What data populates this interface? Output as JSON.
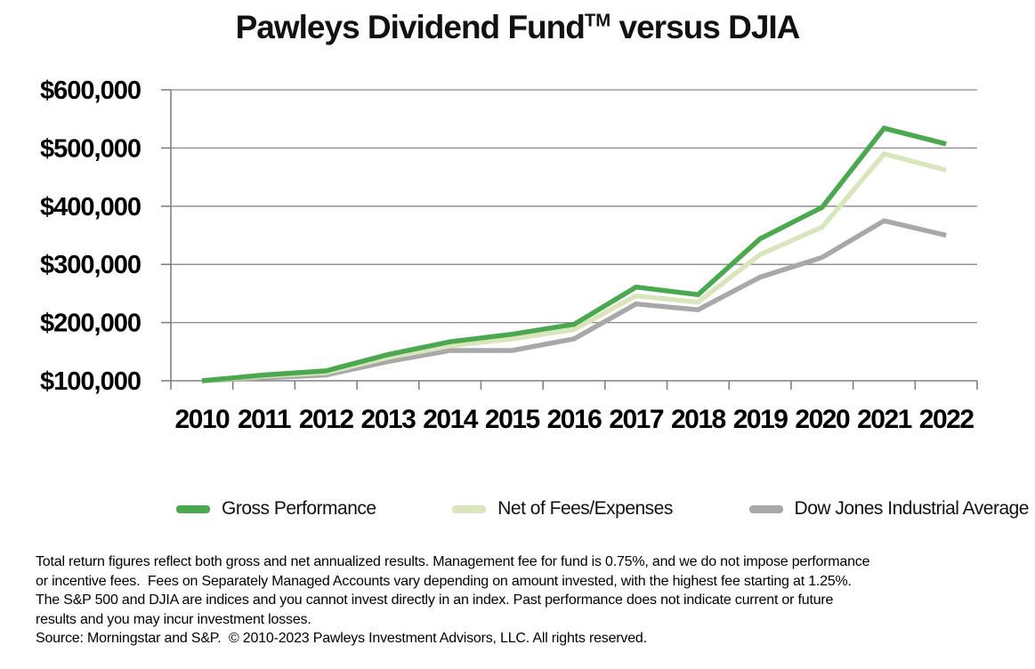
{
  "title": {
    "main": "Pawleys Dividend Fund",
    "trademark": "TM",
    "suffix": " versus DJIA"
  },
  "chart_data": {
    "type": "line",
    "title": "Pawleys Dividend Fund™ versus DJIA",
    "categories": [
      "2010",
      "2011",
      "2012",
      "2013",
      "2014",
      "2015",
      "2016",
      "2017",
      "2018",
      "2019",
      "2020",
      "2021",
      "2022"
    ],
    "series": [
      {
        "name": "Gross Performance",
        "color": "#4aa84e",
        "values": [
          100000,
          110000,
          117000,
          145000,
          167000,
          180000,
          197000,
          261000,
          248000,
          344000,
          398000,
          534000,
          507000
        ]
      },
      {
        "name": "Net of Fees/Expenses",
        "color": "#d9e6bc",
        "values": [
          100000,
          108000,
          114000,
          140000,
          160000,
          172000,
          188000,
          246000,
          235000,
          317000,
          364000,
          490000,
          462000
        ]
      },
      {
        "name": "Dow Jones Industrial Average",
        "color": "#a8a8a8",
        "values": [
          100000,
          105000,
          110000,
          133000,
          152000,
          152000,
          172000,
          232000,
          222000,
          278000,
          312000,
          375000,
          350000
        ]
      }
    ],
    "xlabel": "",
    "ylabel": "",
    "ylim": [
      100000,
      600000
    ],
    "y_ticks": [
      100000,
      200000,
      300000,
      400000,
      500000,
      600000
    ],
    "y_tick_labels": [
      "$100,000",
      "$200,000",
      "$300,000",
      "$400,000",
      "$500,000",
      "$600,000"
    ],
    "grid": "horizontal-only",
    "legend_position": "bottom",
    "axis_color": "#808080",
    "gridline_color": "#888888"
  },
  "legend": {
    "items": [
      {
        "label": "Gross Performance",
        "color": "#4aa84e"
      },
      {
        "label": "Net of Fees/Expenses",
        "color": "#d9e6bc"
      },
      {
        "label": "Dow Jones Industrial Average",
        "color": "#a8a8a8"
      }
    ]
  },
  "footnotes": {
    "lines": [
      "Total return figures reflect both gross and net annualized results. Management fee for fund is 0.75%, and we do not impose performance",
      "or incentive fees.  Fees on Separately Managed Accounts vary depending on amount invested, with the highest fee starting at 1.25%.",
      "The S&P 500 and DJIA are indices and you cannot invest directly in an index. Past performance does not indicate current or future",
      "results and you may incur investment losses.",
      "Source: Morningstar and S&P.  © 2010-2023 Pawleys Investment Advisors, LLC. All rights reserved."
    ]
  }
}
